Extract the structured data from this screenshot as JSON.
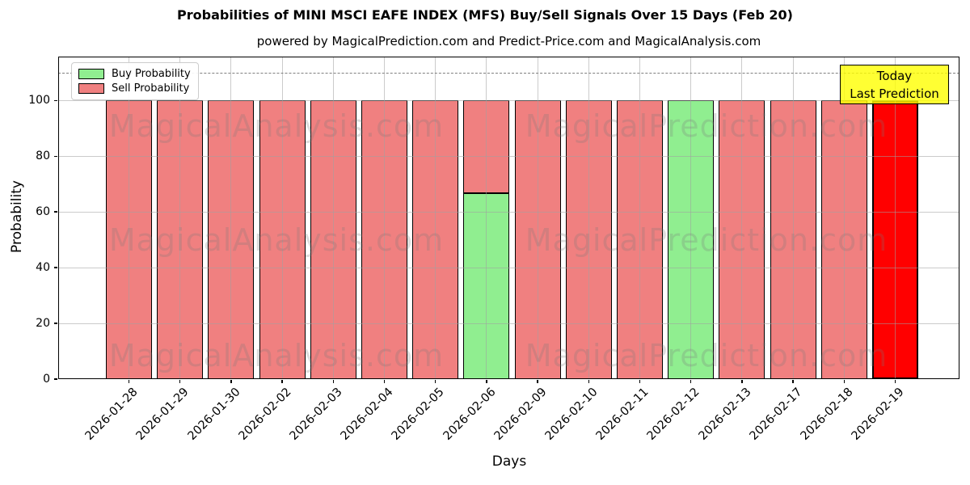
{
  "title": "Probabilities of MINI MSCI EAFE INDEX (MFS) Buy/Sell Signals Over 15 Days (Feb 20)",
  "subtitle": "powered by MagicalPrediction.com and Predict-Price.com and MagicalAnalysis.com",
  "legend": {
    "buy_label": "Buy Probability",
    "sell_label": "Sell Probability"
  },
  "annotation": {
    "line1": "Today",
    "line2": "Last Prediction"
  },
  "axes": {
    "xlabel": "Days",
    "ylabel": "Probability",
    "yticks": [
      0,
      20,
      40,
      60,
      80,
      100
    ]
  },
  "watermarks": {
    "left_text": "MagicalAnalysis.com",
    "right_text": "MagicalPrediction.com"
  },
  "colors": {
    "buy": "#90ee90",
    "sell": "#f08080",
    "today": "#ff0000",
    "annotation_bg": "#ffff00",
    "bar_edge": "#000000",
    "grid": "#b0b0b0",
    "threshold": "#7f7f7f"
  },
  "chart_data": {
    "type": "bar",
    "stacked": true,
    "title": "Probabilities of MINI MSCI EAFE INDEX (MFS) Buy/Sell Signals Over 15 Days (Feb 20)",
    "xlabel": "Days",
    "ylabel": "Probability",
    "categories": [
      "2026-01-28",
      "2026-01-29",
      "2026-01-30",
      "2026-02-02",
      "2026-02-03",
      "2026-02-04",
      "2026-02-05",
      "2026-02-06",
      "2026-02-09",
      "2026-02-10",
      "2026-02-11",
      "2026-02-12",
      "2026-02-13",
      "2026-02-17",
      "2026-02-18",
      "2026-02-19"
    ],
    "series": [
      {
        "name": "Buy Probability",
        "color": "#90ee90",
        "values": [
          0,
          0,
          0,
          0,
          0,
          0,
          0,
          66.67,
          0,
          0,
          0,
          100,
          0,
          0,
          0,
          0
        ]
      },
      {
        "name": "Sell Probability",
        "color": "#f08080",
        "values": [
          100,
          100,
          100,
          100,
          100,
          100,
          100,
          33.33,
          100,
          100,
          100,
          0,
          100,
          100,
          100,
          100
        ]
      }
    ],
    "today_index": 15,
    "today_color": "#ff0000",
    "ylim": [
      0,
      115.75
    ],
    "threshold_line_y": 110,
    "grid": true,
    "legend_position": "upper-left"
  }
}
